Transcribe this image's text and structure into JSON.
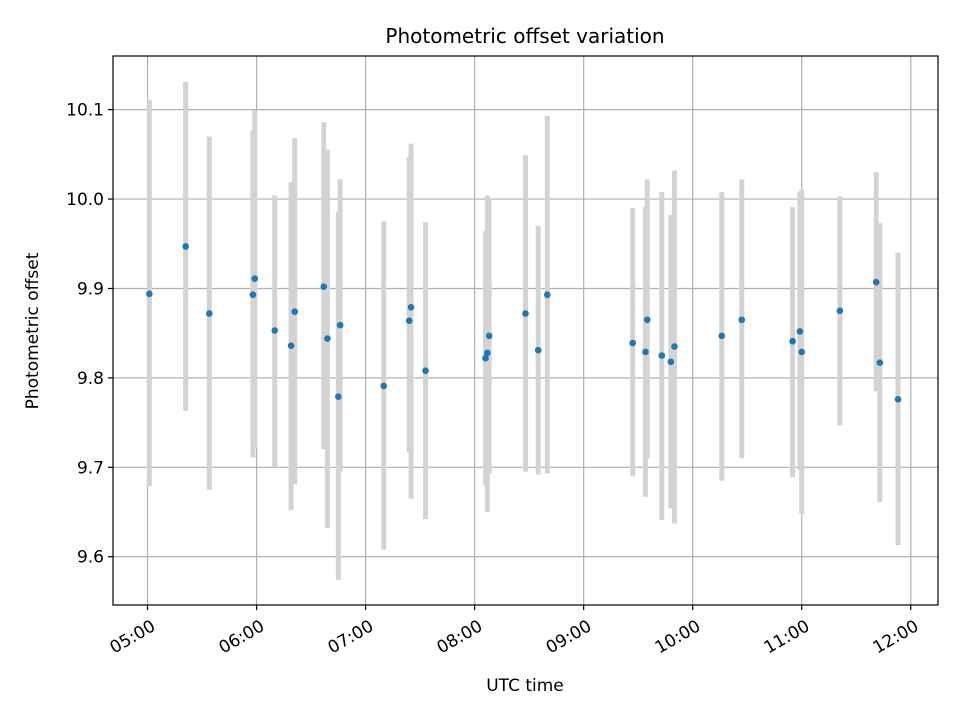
{
  "chart_data": {
    "type": "scatter",
    "title": "Photometric offset variation",
    "xlabel": "UTC time",
    "ylabel": "Photometric offset",
    "x_ticks": [
      "05:00",
      "06:00",
      "07:00",
      "08:00",
      "09:00",
      "10:00",
      "11:00",
      "12:00"
    ],
    "y_ticks": [
      "9.6",
      "9.7",
      "9.8",
      "9.9",
      "10.0",
      "10.1"
    ],
    "xlim": [
      "04:41",
      "12:15"
    ],
    "ylim": [
      9.546,
      10.16
    ],
    "grid": true,
    "colors": {
      "point": "#1f77b4",
      "errorbar": "#d3d3d3",
      "grid": "#b0b0b0"
    },
    "points": [
      {
        "t": "05:01",
        "y": 9.894,
        "lo": 9.679,
        "hi": 10.111
      },
      {
        "t": "05:21",
        "y": 9.947,
        "lo": 9.763,
        "hi": 10.131
      },
      {
        "t": "05:34",
        "y": 9.872,
        "lo": 9.675,
        "hi": 10.07
      },
      {
        "t": "05:58",
        "y": 9.893,
        "lo": 9.711,
        "hi": 10.077
      },
      {
        "t": "05:59",
        "y": 9.911,
        "lo": 9.722,
        "hi": 10.099
      },
      {
        "t": "06:10",
        "y": 9.853,
        "lo": 9.7,
        "hi": 10.004
      },
      {
        "t": "06:19",
        "y": 9.836,
        "lo": 9.652,
        "hi": 10.019
      },
      {
        "t": "06:21",
        "y": 9.874,
        "lo": 9.681,
        "hi": 10.068
      },
      {
        "t": "06:37",
        "y": 9.902,
        "lo": 9.72,
        "hi": 10.086
      },
      {
        "t": "06:39",
        "y": 9.844,
        "lo": 9.632,
        "hi": 10.055
      },
      {
        "t": "06:45",
        "y": 9.779,
        "lo": 9.574,
        "hi": 9.985
      },
      {
        "t": "06:46",
        "y": 9.859,
        "lo": 9.695,
        "hi": 10.022
      },
      {
        "t": "07:10",
        "y": 9.791,
        "lo": 9.608,
        "hi": 9.975
      },
      {
        "t": "07:24",
        "y": 9.864,
        "lo": 9.717,
        "hi": 10.047
      },
      {
        "t": "07:25",
        "y": 9.879,
        "lo": 9.665,
        "hi": 10.062
      },
      {
        "t": "07:33",
        "y": 9.808,
        "lo": 9.642,
        "hi": 9.974
      },
      {
        "t": "08:06",
        "y": 9.822,
        "lo": 9.68,
        "hi": 9.964
      },
      {
        "t": "08:07",
        "y": 9.828,
        "lo": 9.65,
        "hi": 10.004
      },
      {
        "t": "08:08",
        "y": 9.847,
        "lo": 9.693,
        "hi": 10.001
      },
      {
        "t": "08:28",
        "y": 9.872,
        "lo": 9.695,
        "hi": 10.049
      },
      {
        "t": "08:35",
        "y": 9.831,
        "lo": 9.692,
        "hi": 9.97
      },
      {
        "t": "08:40",
        "y": 9.893,
        "lo": 9.693,
        "hi": 10.093
      },
      {
        "t": "09:27",
        "y": 9.839,
        "lo": 9.69,
        "hi": 9.99
      },
      {
        "t": "09:34",
        "y": 9.829,
        "lo": 9.667,
        "hi": 9.991
      },
      {
        "t": "09:35",
        "y": 9.865,
        "lo": 9.71,
        "hi": 10.022
      },
      {
        "t": "09:43",
        "y": 9.825,
        "lo": 9.641,
        "hi": 10.008
      },
      {
        "t": "09:48",
        "y": 9.818,
        "lo": 9.654,
        "hi": 9.982
      },
      {
        "t": "09:50",
        "y": 9.835,
        "lo": 9.637,
        "hi": 10.032
      },
      {
        "t": "10:16",
        "y": 9.847,
        "lo": 9.685,
        "hi": 10.008
      },
      {
        "t": "10:27",
        "y": 9.865,
        "lo": 9.71,
        "hi": 10.022
      },
      {
        "t": "10:55",
        "y": 9.841,
        "lo": 9.689,
        "hi": 9.991
      },
      {
        "t": "10:59",
        "y": 9.852,
        "lo": 9.697,
        "hi": 10.008
      },
      {
        "t": "11:00",
        "y": 9.829,
        "lo": 9.648,
        "hi": 10.011
      },
      {
        "t": "11:21",
        "y": 9.875,
        "lo": 9.747,
        "hi": 10.003
      },
      {
        "t": "11:41",
        "y": 9.907,
        "lo": 9.785,
        "hi": 10.03
      },
      {
        "t": "11:43",
        "y": 9.817,
        "lo": 9.661,
        "hi": 9.973
      },
      {
        "t": "11:53",
        "y": 9.776,
        "lo": 9.613,
        "hi": 9.94
      }
    ]
  }
}
